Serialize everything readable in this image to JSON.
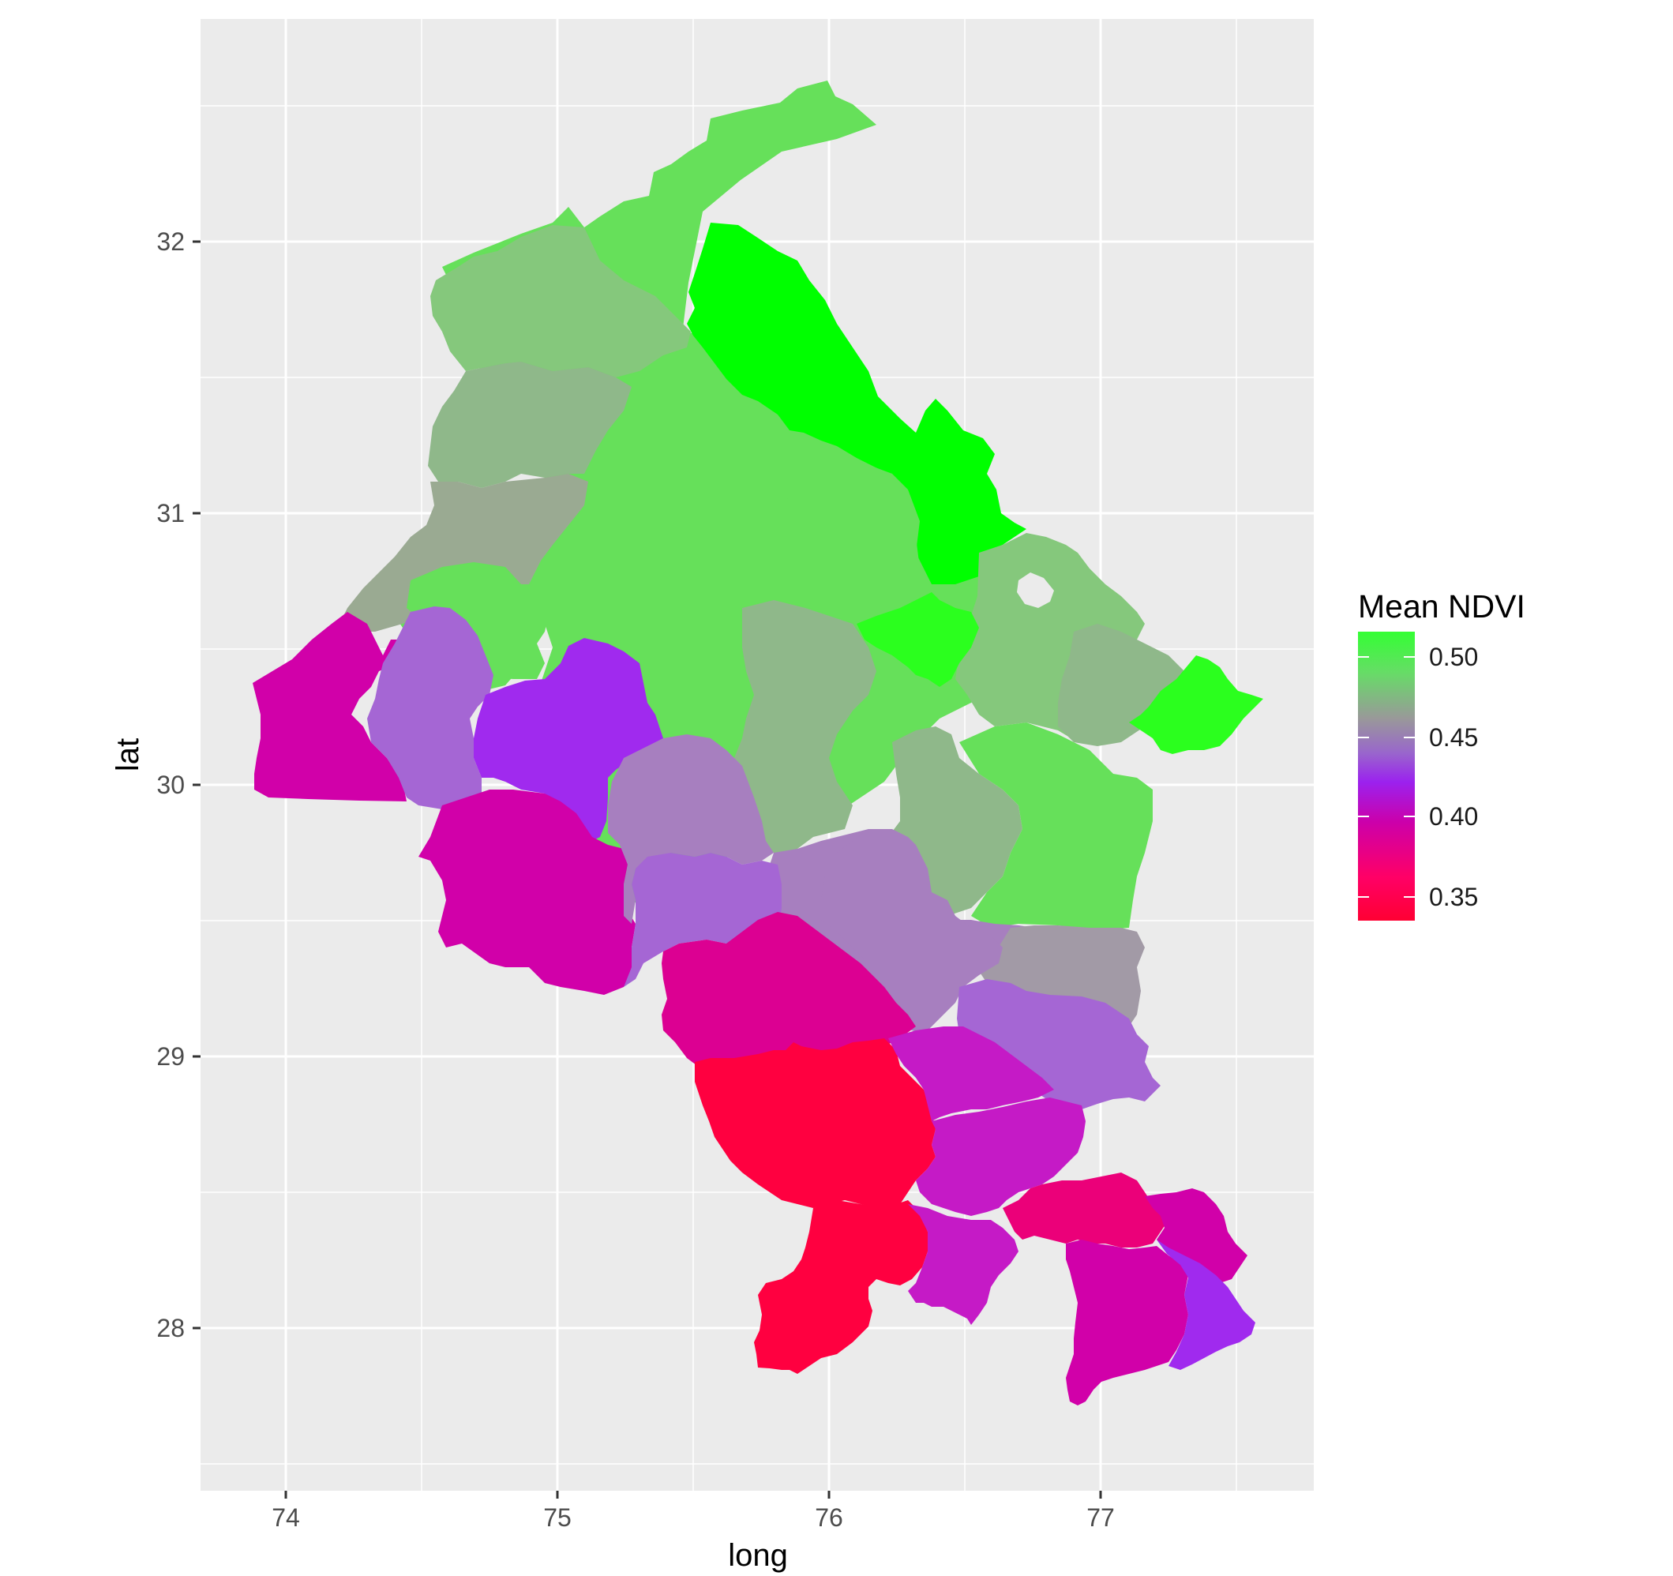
{
  "map": {
    "x_axis": {
      "title": "long",
      "ticks": [
        "74",
        "75",
        "76",
        "77"
      ],
      "tick_values": [
        74,
        75,
        76,
        77
      ],
      "range": [
        73.68,
        77.78
      ]
    },
    "y_axis": {
      "title": "lat",
      "ticks": [
        "28",
        "29",
        "30",
        "31",
        "32"
      ],
      "tick_values": [
        28,
        29,
        30,
        31,
        32
      ],
      "range": [
        27.4,
        32.84
      ]
    },
    "grid": true,
    "panel_background": "#ebebeb",
    "legend": {
      "title": "Mean NDVI",
      "labels": [
        "0.50",
        "0.45",
        "0.40",
        "0.35"
      ],
      "values": [
        0.5,
        0.45,
        0.4,
        0.35
      ],
      "range": [
        0.335,
        0.518
      ],
      "placement": "right",
      "gradient_colors": [
        "#33ff33",
        "#66dd66",
        "#999999",
        "#9966cc",
        "#9b22ee",
        "#cc00aa",
        "#ff0066",
        "#ff0033"
      ]
    },
    "regions": [
      {
        "color": "#66e05a"
      },
      {
        "color": "#00ff00"
      },
      {
        "color": "#85c87c"
      },
      {
        "color": "#8fb88a"
      },
      {
        "color": "#9aaa92"
      },
      {
        "color": "#2bff1e"
      },
      {
        "color": "#d100a9"
      },
      {
        "color": "#a566d4"
      },
      {
        "color": "#a02aee"
      },
      {
        "color": "#dc0092"
      },
      {
        "color": "#ff0040"
      },
      {
        "color": "#c51ac6"
      },
      {
        "color": "#eb0079"
      },
      {
        "color": "#a29aa6"
      },
      {
        "color": "#a77fbf"
      }
    ]
  }
}
